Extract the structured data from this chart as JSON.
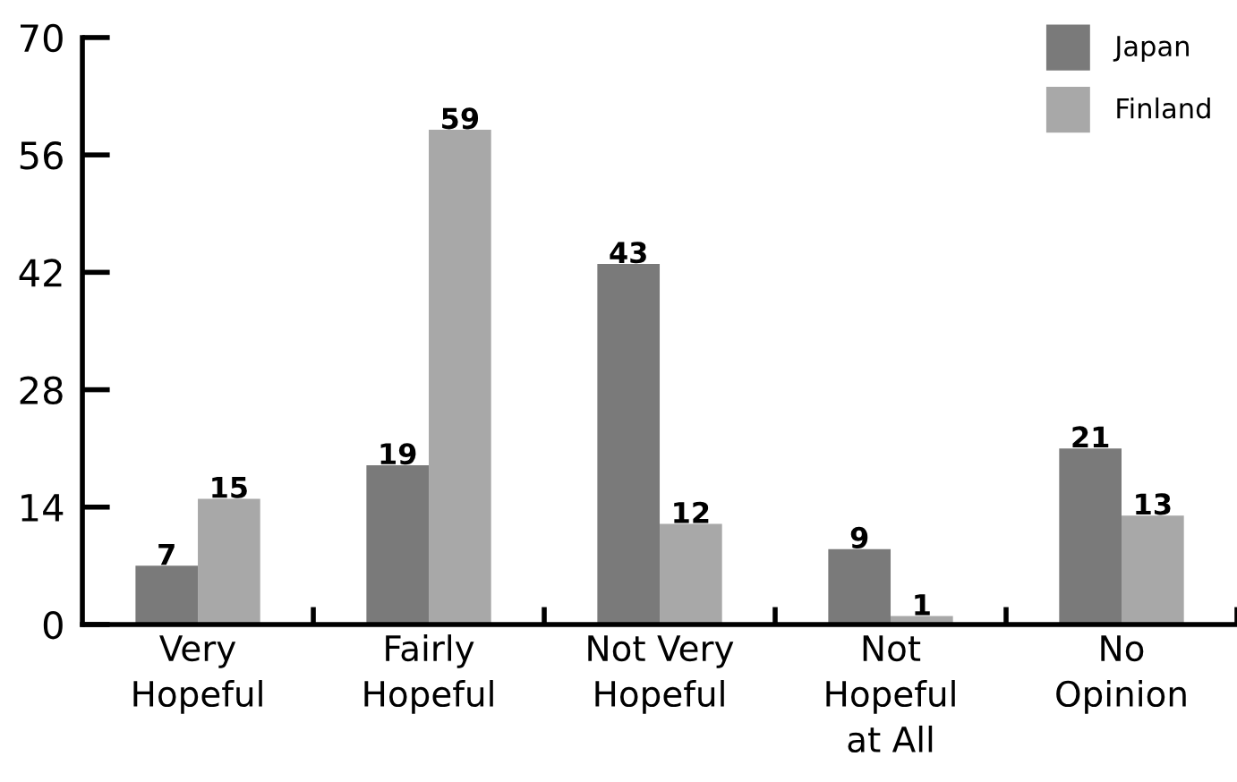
{
  "chart_data": {
    "type": "bar",
    "categories": [
      "Very\nHopeful",
      "Fairly\nHopeful",
      "Not Very\nHopeful",
      "Not\nHopeful\nat All",
      "No\nOpinion"
    ],
    "series": [
      {
        "name": "Japan",
        "color": "#7a7a7a",
        "values": [
          7,
          19,
          43,
          9,
          21
        ]
      },
      {
        "name": "Finland",
        "color": "#a8a8a8",
        "values": [
          15,
          59,
          12,
          1,
          13
        ]
      }
    ],
    "ylim": [
      0,
      70
    ],
    "yticks": [
      0,
      14,
      28,
      42,
      56,
      70
    ],
    "data_labels": true,
    "legend": "top right",
    "grid": false
  }
}
